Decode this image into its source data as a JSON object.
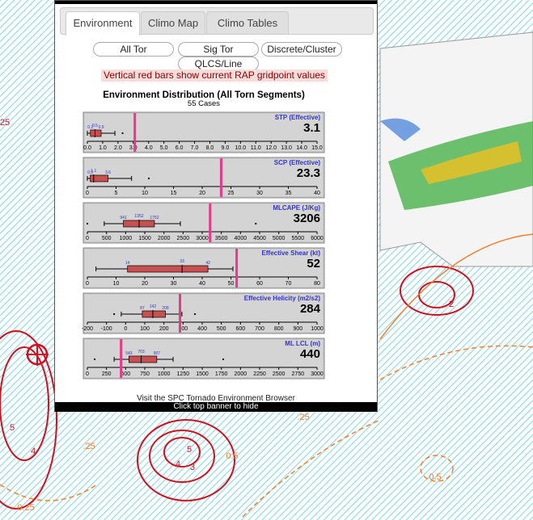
{
  "tabs": [
    "Environment",
    "Climo Map",
    "Climo Tables"
  ],
  "buttons": [
    "All Tor",
    "Sig Tor",
    "Discrete/Cluster",
    "QLCS/Line"
  ],
  "note": "Vertical red bars show current RAP gridpoint values",
  "chart_data": {
    "type": "boxplot",
    "title": "Environment Distribution (All Torn Segments)",
    "subtitle": "55 Cases",
    "current_color": "#e8388a",
    "box_color": "#c85050",
    "panels": [
      {
        "name": "STP (Effective)",
        "current": 3.1,
        "lo": 0,
        "q1": 0.2,
        "median": 0.5,
        "q3": 0.9,
        "hi": 1.8,
        "outliers": [
          2.3
        ],
        "xlim": [
          0,
          15
        ],
        "xticks": [
          {
            "value": 0,
            "label": "0.0"
          },
          {
            "value": 1,
            "label": "1.0"
          },
          {
            "value": 2,
            "label": "2.0"
          },
          {
            "value": 3,
            "label": "3.0"
          },
          {
            "value": 4,
            "label": "4.0"
          },
          {
            "value": 5,
            "label": "5.0"
          },
          {
            "value": 6,
            "label": "6.0"
          },
          {
            "value": 7,
            "label": "7.0"
          },
          {
            "value": 8,
            "label": "8.0"
          },
          {
            "value": 9,
            "label": "9.0"
          },
          {
            "value": 10,
            "label": "10.0"
          },
          {
            "value": 11,
            "label": "11.0"
          },
          {
            "value": 12,
            "label": "12.0"
          },
          {
            "value": 13,
            "label": "13.0"
          },
          {
            "value": 14,
            "label": "14.0"
          },
          {
            "value": 15,
            "label": "15.0"
          }
        ]
      },
      {
        "name": "SCP (Effective)",
        "current": 23.3,
        "lo": 0,
        "q1": 0.5,
        "median": 1.1,
        "q3": 3.6,
        "hi": 7.7,
        "outliers": [
          10.7
        ],
        "xlim": [
          0,
          40
        ],
        "xticks": [
          0,
          5,
          10,
          15,
          20,
          25,
          30,
          35,
          40
        ]
      },
      {
        "name": "MLCAPE (J/Kg)",
        "current": 3206,
        "lo": 440,
        "q1": 941,
        "median": 1352,
        "q3": 1752,
        "hi": 2430,
        "outliers": [
          0,
          4400
        ],
        "xlim": [
          0,
          6000
        ],
        "xticks": [
          0,
          500,
          1000,
          1500,
          2000,
          2500,
          3000,
          3500,
          4000,
          4500,
          5000,
          5500,
          6000
        ]
      },
      {
        "name": "Effective Shear (kt)",
        "current": 52,
        "lo": 3,
        "q1": 14,
        "median": 33,
        "q3": 42,
        "hi": 50.7,
        "outliers": [],
        "xlim": [
          0,
          80
        ],
        "xticks": [
          0,
          10,
          20,
          30,
          40,
          50,
          60,
          70,
          80
        ]
      },
      {
        "name": "Effective Helicity (m2/s2)",
        "current": 284,
        "lo": -23,
        "q1": 87,
        "median": 142,
        "q3": 208,
        "hi": 294,
        "outliers": [
          -60,
          362
        ],
        "xlim": [
          -200,
          1000
        ],
        "xticks": [
          -200,
          -100,
          0,
          100,
          200,
          300,
          400,
          500,
          600,
          700,
          800,
          900,
          1000
        ]
      },
      {
        "name": "ML LCL (m)",
        "current": 440,
        "lo": 350,
        "q1": 543,
        "median": 703,
        "q3": 907,
        "hi": 1120,
        "outliers": [
          95,
          1775
        ],
        "xlim": [
          0,
          3000
        ],
        "xticks": [
          0,
          250,
          500,
          750,
          1000,
          1250,
          1500,
          1750,
          2000,
          2250,
          2500,
          2750,
          3000
        ]
      }
    ]
  },
  "visit": "Visit the SPC Tornado Environment Browser",
  "hide": "Click top banner to hide",
  "map_labels": [
    "25",
    "5",
    "4",
    "5",
    "4",
    "3",
    "2",
    "0.25",
    ".25",
    "0.5",
    ".25",
    "0.5"
  ]
}
